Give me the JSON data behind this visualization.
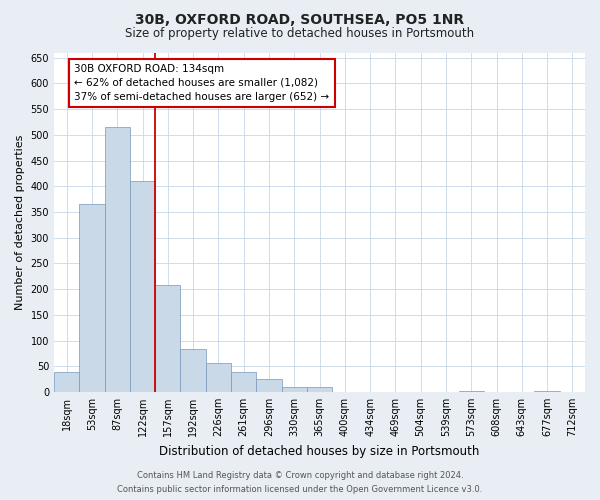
{
  "title": "30B, OXFORD ROAD, SOUTHSEA, PO5 1NR",
  "subtitle": "Size of property relative to detached houses in Portsmouth",
  "xlabel": "Distribution of detached houses by size in Portsmouth",
  "ylabel": "Number of detached properties",
  "bar_labels": [
    "18sqm",
    "53sqm",
    "87sqm",
    "122sqm",
    "157sqm",
    "192sqm",
    "226sqm",
    "261sqm",
    "296sqm",
    "330sqm",
    "365sqm",
    "400sqm",
    "434sqm",
    "469sqm",
    "504sqm",
    "539sqm",
    "573sqm",
    "608sqm",
    "643sqm",
    "677sqm",
    "712sqm"
  ],
  "bar_heights": [
    38,
    365,
    515,
    410,
    207,
    83,
    57,
    38,
    25,
    10,
    10,
    0,
    0,
    0,
    0,
    0,
    2,
    0,
    0,
    2,
    0
  ],
  "bar_color": "#c9d9e8",
  "bar_edge_color": "#7799bb",
  "ylim": [
    0,
    660
  ],
  "yticks": [
    0,
    50,
    100,
    150,
    200,
    250,
    300,
    350,
    400,
    450,
    500,
    550,
    600,
    650
  ],
  "property_line_color": "#cc0000",
  "annotation_title": "30B OXFORD ROAD: 134sqm",
  "annotation_line1": "← 62% of detached houses are smaller (1,082)",
  "annotation_line2": "37% of semi-detached houses are larger (652) →",
  "annotation_box_color": "#cc0000",
  "footer_line1": "Contains HM Land Registry data © Crown copyright and database right 2024.",
  "footer_line2": "Contains public sector information licensed under the Open Government Licence v3.0.",
  "background_color": "#e8eef4",
  "plot_background_color": "#ffffff",
  "grid_color": "#c8d8e8",
  "title_fontsize": 10,
  "subtitle_fontsize": 8.5,
  "xlabel_fontsize": 8.5,
  "ylabel_fontsize": 8,
  "tick_fontsize": 7,
  "footer_fontsize": 6,
  "annotation_fontsize": 7.5
}
